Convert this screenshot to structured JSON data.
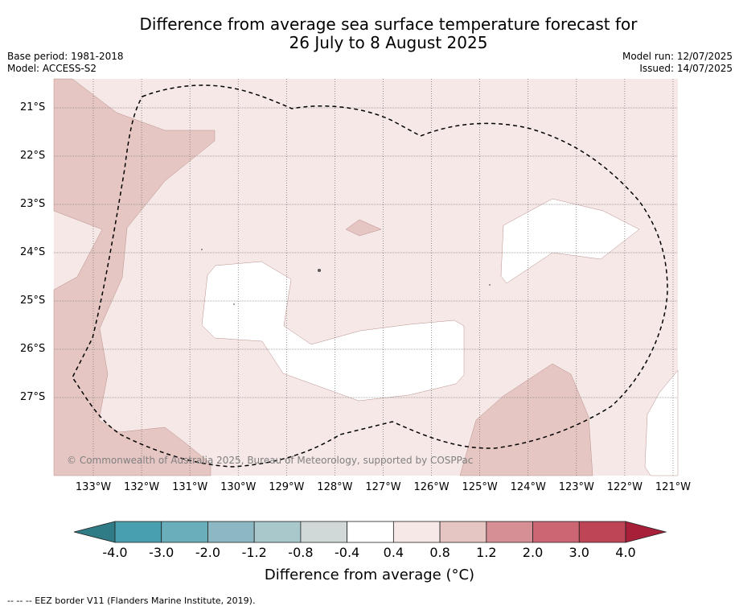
{
  "title_line1": "Difference from average sea surface temperature forecast for",
  "title_line2": "26 July to 8 August 2025",
  "meta_left": {
    "base_period": "Base period: 1981-2018",
    "model": "Model: ACCESS-S2"
  },
  "meta_right": {
    "model_run": "Model run: 12/07/2025",
    "issued": "Issued: 14/07/2025"
  },
  "map": {
    "lat_ticks": [
      "21°S",
      "22°S",
      "23°S",
      "24°S",
      "25°S",
      "26°S",
      "27°S"
    ],
    "lon_ticks": [
      "133°W",
      "132°W",
      "131°W",
      "130°W",
      "129°W",
      "128°W",
      "127°W",
      "126°W",
      "125°W",
      "124°W",
      "123°W",
      "122°W",
      "121°W"
    ],
    "copyright": "© Commonwealth of Australia 2025, Bureau of Meteorology, supported by COSPPac",
    "colors": {
      "background": "#f5e8e7",
      "warm_patch": "#e6c6c2",
      "neutral": "#ffffff"
    }
  },
  "colorbar": {
    "ticks": [
      "-4.0",
      "-3.0",
      "-2.0",
      "-1.2",
      "-0.8",
      "-0.4",
      "0.4",
      "0.8",
      "1.2",
      "2.0",
      "3.0",
      "4.0"
    ],
    "colors": [
      "#2f7b86",
      "#489faf",
      "#6aaebb",
      "#8cb8c4",
      "#a8c8cc",
      "#d1d8d8",
      "#ffffff",
      "#f5e8e7",
      "#e6c6c2",
      "#d78f96",
      "#cc6672",
      "#be4556",
      "#a81f3a"
    ],
    "label": "Difference from average (°C)"
  },
  "footnote": "--  --  -- EEZ border V11 (Flanders Marine Institute, 2019)."
}
